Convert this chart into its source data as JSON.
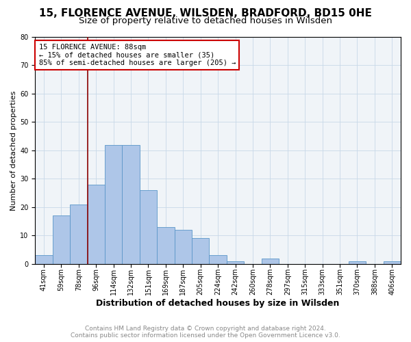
{
  "title1": "15, FLORENCE AVENUE, WILSDEN, BRADFORD, BD15 0HE",
  "title2": "Size of property relative to detached houses in Wilsden",
  "xlabel": "Distribution of detached houses by size in Wilsden",
  "ylabel": "Number of detached properties",
  "categories": [
    "41sqm",
    "59sqm",
    "78sqm",
    "96sqm",
    "114sqm",
    "132sqm",
    "151sqm",
    "169sqm",
    "187sqm",
    "205sqm",
    "224sqm",
    "242sqm",
    "260sqm",
    "278sqm",
    "297sqm",
    "315sqm",
    "333sqm",
    "351sqm",
    "370sqm",
    "388sqm",
    "406sqm"
  ],
  "values": [
    3,
    17,
    21,
    28,
    42,
    42,
    26,
    13,
    12,
    9,
    3,
    1,
    0,
    2,
    0,
    0,
    0,
    0,
    1,
    0,
    1
  ],
  "bar_color": "#aec6e8",
  "bar_edge_color": "#5a96c8",
  "vline_color": "#8b0000",
  "annotation_text": "15 FLORENCE AVENUE: 88sqm\n← 15% of detached houses are smaller (35)\n85% of semi-detached houses are larger (205) →",
  "annotation_box_color": "#ffffff",
  "annotation_box_edge_color": "#cc0000",
  "ylim": [
    0,
    80
  ],
  "yticks": [
    0,
    10,
    20,
    30,
    40,
    50,
    60,
    70,
    80
  ],
  "footer": "Contains HM Land Registry data © Crown copyright and database right 2024.\nContains public sector information licensed under the Open Government Licence v3.0.",
  "footer_color": "#888888",
  "title1_fontsize": 11,
  "title2_fontsize": 9.5,
  "xlabel_fontsize": 9,
  "ylabel_fontsize": 8,
  "tick_fontsize": 7,
  "footer_fontsize": 6.5,
  "annotation_fontsize": 7.5
}
